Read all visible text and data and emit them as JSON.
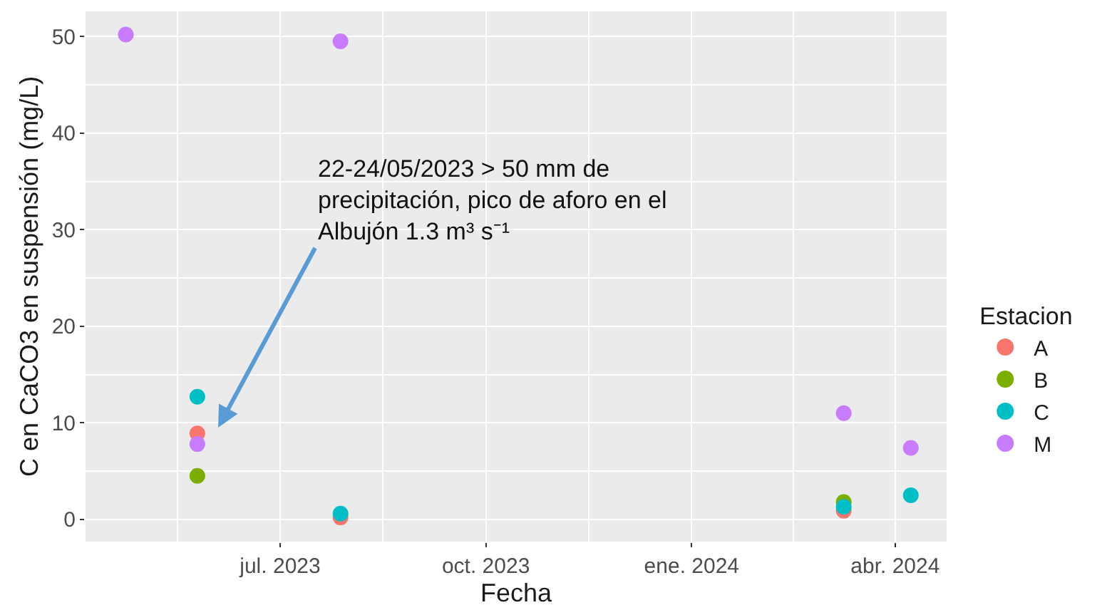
{
  "chart_data": {
    "type": "scatter",
    "xlabel": "Fecha",
    "ylabel": "C en CaCO3 en suspensión (mg/L)",
    "legend_title": "Estacion",
    "legend": "right",
    "marker": "circle",
    "grid": true,
    "xlim": [
      "2023-04-05",
      "2024-04-24"
    ],
    "xticks": [
      {
        "value": "2023-07-01",
        "label": "jul. 2023"
      },
      {
        "value": "2023-10-01",
        "label": "oct. 2023"
      },
      {
        "value": "2024-01-01",
        "label": "ene. 2024"
      },
      {
        "value": "2024-04-01",
        "label": "abr. 2024"
      }
    ],
    "ylim": [
      -2.3,
      52.6
    ],
    "yticks": [
      0,
      10,
      20,
      30,
      40,
      50
    ],
    "series": [
      {
        "name": "A",
        "color": "#f8766d",
        "x": [
          "2023-05-25",
          "2023-07-28",
          "2024-03-09"
        ],
        "values": [
          8.9,
          0.2,
          0.9
        ]
      },
      {
        "name": "B",
        "color": "#7cae00",
        "x": [
          "2023-05-25",
          "2024-03-09"
        ],
        "values": [
          4.5,
          1.8
        ]
      },
      {
        "name": "C",
        "color": "#00bfc4",
        "x": [
          "2023-05-25",
          "2023-07-28",
          "2024-03-09",
          "2024-04-08"
        ],
        "values": [
          12.7,
          0.6,
          1.3,
          2.5
        ]
      },
      {
        "name": "M",
        "color": "#c77cff",
        "x": [
          "2023-04-23",
          "2023-05-25",
          "2023-07-28",
          "2024-03-09",
          "2024-04-08"
        ],
        "values": [
          50.2,
          7.8,
          49.5,
          11.0,
          7.4
        ]
      }
    ],
    "annotations": [
      "22-24/05/2023 > 50 mm de\nprecipitación, pico de aforo en el\nAlbujón 1.3 m³ s⁻¹"
    ]
  }
}
